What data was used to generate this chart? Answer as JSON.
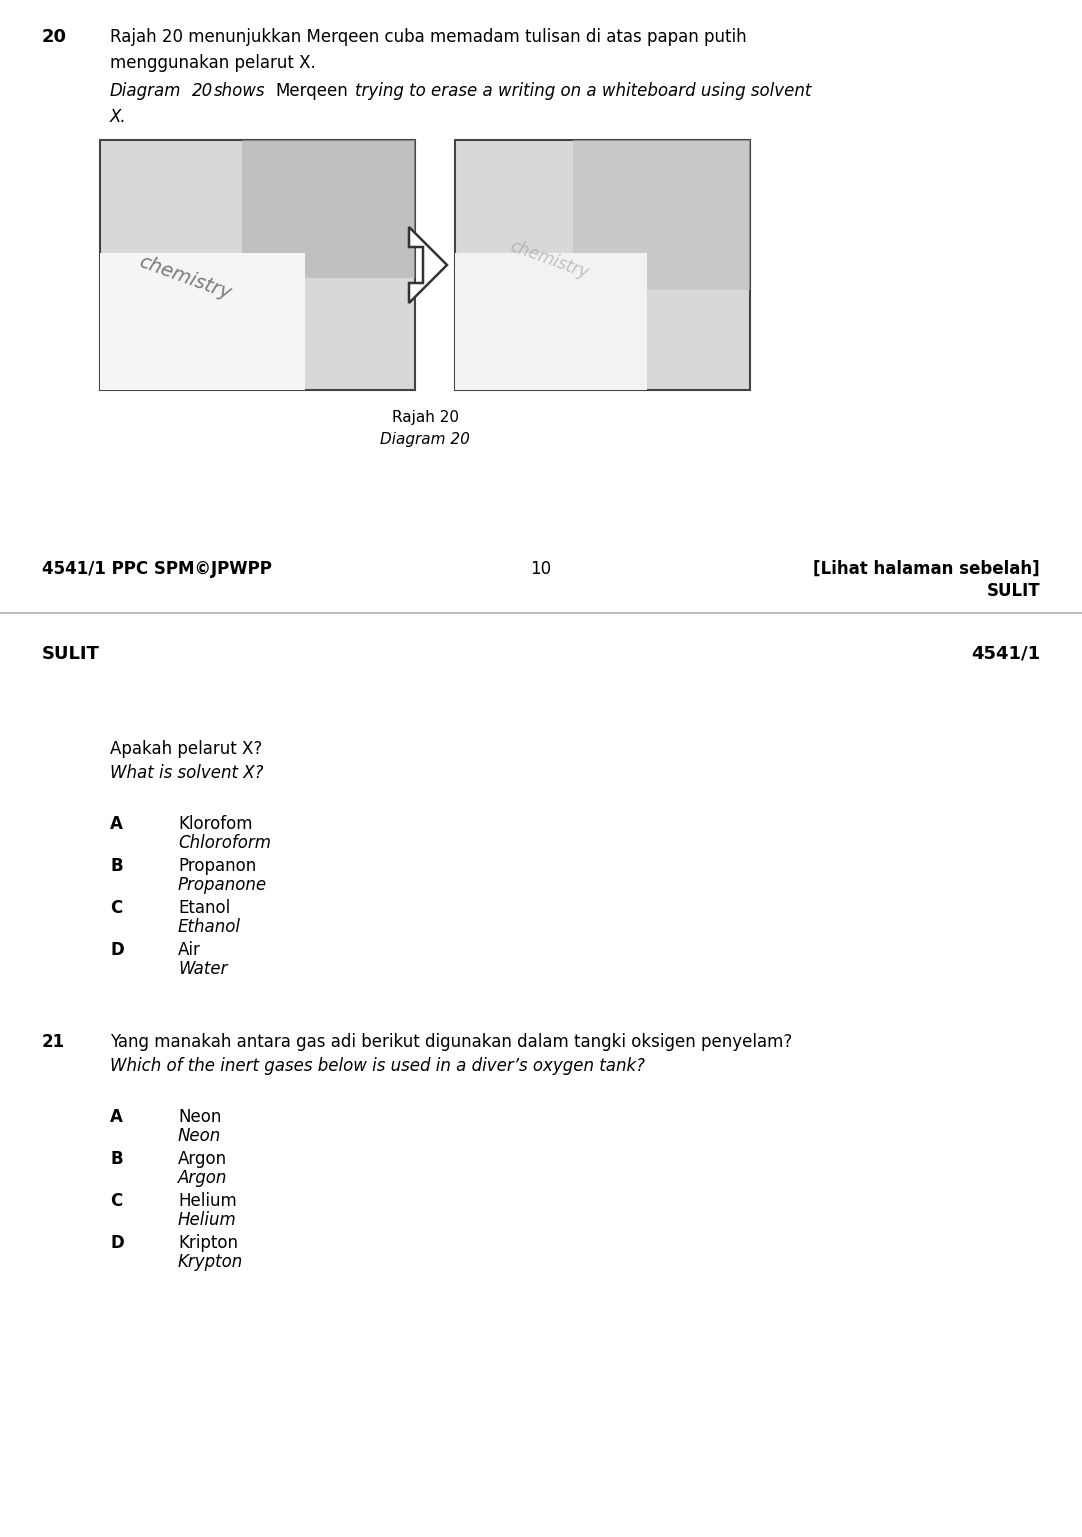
{
  "bg_color": "#ffffff",
  "text_color": "#000000",
  "gray_separator": "#bbbbbb",
  "page1": {
    "q_number": "20",
    "q_text_malay_line1": "Rajah 20 menunjukkan Merqeen cuba memadam tulisan di atas papan putih",
    "q_text_malay_line2": "menggunakan pelarut X.",
    "q_text_eng_line1": "Diagram 20 shows Merqeen trying to erase a writing on a whiteboard using solvent",
    "q_text_eng_line2": "X.",
    "diagram_label_malay": "Rajah 20",
    "diagram_label_english": "Diagram 20",
    "footer_left": "4541/1 PPC SPM©JPWPP",
    "footer_center": "10",
    "footer_right_line1": "[Lihat halaman sebelah]",
    "footer_right_line2": "SULIT"
  },
  "page2": {
    "header_left": "SULIT",
    "header_right": "4541/1",
    "q_text_malay": "Apakah pelarut X?",
    "q_text_english": "What is solvent X?",
    "options_q20": [
      {
        "letter": "A",
        "malay": "Klorofom",
        "english": "Chloroform"
      },
      {
        "letter": "B",
        "malay": "Propanon",
        "english": "Propanone"
      },
      {
        "letter": "C",
        "malay": "Etanol",
        "english": "Ethanol"
      },
      {
        "letter": "D",
        "malay": "Air",
        "english": "Water"
      }
    ],
    "q21_number": "21",
    "q21_text_malay": "Yang manakah antara gas adi berikut digunakan dalam tangki oksigen penyelam?",
    "q21_text_english": "Which of the inert gases below is used in a diver’s oxygen tank?",
    "options_q21": [
      {
        "letter": "A",
        "malay": "Neon",
        "english": "Neon"
      },
      {
        "letter": "B",
        "malay": "Argon",
        "english": "Argon"
      },
      {
        "letter": "C",
        "malay": "Helium",
        "english": "Helium"
      },
      {
        "letter": "D",
        "malay": "Kripton",
        "english": "Krypton"
      }
    ]
  }
}
